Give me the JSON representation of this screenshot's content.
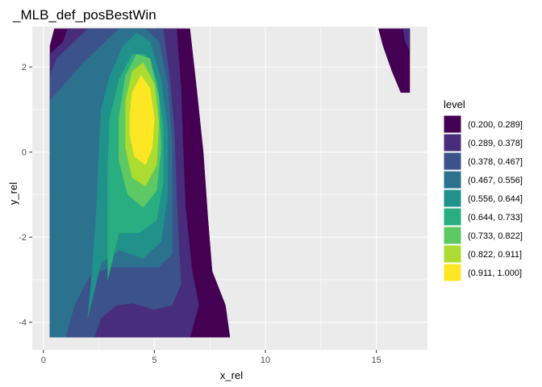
{
  "chart_data": {
    "type": "contour",
    "title": "_MLB_def_posBestWin",
    "xlabel": "x_rel",
    "ylabel": "y_rel",
    "xlim": [
      -0.5,
      17.3
    ],
    "ylim": [
      -4.65,
      2.95
    ],
    "x_ticks": [
      0,
      5,
      10,
      15
    ],
    "y_ticks": [
      -4,
      -2,
      0,
      2
    ],
    "grid": true,
    "panel_background": "#ebebeb",
    "legend": {
      "title": "level",
      "placement": "right",
      "entries": [
        {
          "label": "(0.200, 0.289]",
          "color": "#440154"
        },
        {
          "label": "(0.289, 0.378]",
          "color": "#472d7b"
        },
        {
          "label": "(0.378, 0.467]",
          "color": "#3b528b"
        },
        {
          "label": "(0.467, 0.556]",
          "color": "#2c728e"
        },
        {
          "label": "(0.556, 0.644]",
          "color": "#21918c"
        },
        {
          "label": "(0.644, 0.733]",
          "color": "#28ae80"
        },
        {
          "label": "(0.733, 0.822]",
          "color": "#5ec962"
        },
        {
          "label": "(0.822, 0.911]",
          "color": "#addc30"
        },
        {
          "label": "(0.911, 1.000]",
          "color": "#fde725"
        }
      ]
    },
    "regions": [
      {
        "level": 0,
        "points": [
          [
            0.3,
            -4.35
          ],
          [
            8.4,
            -4.35
          ],
          [
            8.2,
            -3.6
          ],
          [
            7.6,
            -2.8
          ],
          [
            7.4,
            -1.5
          ],
          [
            7.2,
            0
          ],
          [
            6.9,
            1.5
          ],
          [
            6.6,
            2.9
          ],
          [
            0.5,
            2.9
          ],
          [
            0.3,
            2.5
          ]
        ]
      },
      {
        "level": 1,
        "points": [
          [
            0.3,
            -4.35
          ],
          [
            4.9,
            -4.35
          ],
          [
            4.3,
            -4.1
          ],
          [
            3.7,
            -4.35
          ],
          [
            6.6,
            -4.35
          ],
          [
            7.0,
            -3.6
          ],
          [
            6.7,
            -2.8
          ],
          [
            6.4,
            -1.3
          ],
          [
            6.3,
            0
          ],
          [
            6.2,
            1.5
          ],
          [
            6.0,
            2.9
          ],
          [
            1.1,
            2.9
          ],
          [
            0.9,
            2.6
          ],
          [
            0.3,
            2.3
          ]
        ]
      },
      {
        "level": 2,
        "points": [
          [
            0.3,
            -4.35
          ],
          [
            2.3,
            -4.35
          ],
          [
            2.6,
            -3.9
          ],
          [
            3.3,
            -3.6
          ],
          [
            4.0,
            -3.55
          ],
          [
            5.0,
            -3.7
          ],
          [
            5.8,
            -3.6
          ],
          [
            6.2,
            -3.1
          ],
          [
            6.1,
            -2.2
          ],
          [
            6.0,
            -1.0
          ],
          [
            5.9,
            0.5
          ],
          [
            5.7,
            1.7
          ],
          [
            5.4,
            2.9
          ],
          [
            2.0,
            2.9
          ],
          [
            1.4,
            2.6
          ],
          [
            0.6,
            2.2
          ],
          [
            0.3,
            1.8
          ]
        ]
      },
      {
        "level": 3,
        "points": [
          [
            0.3,
            -4.35
          ],
          [
            1.0,
            -4.35
          ],
          [
            1.4,
            -3.6
          ],
          [
            2.1,
            -2.9
          ],
          [
            3.0,
            -2.7
          ],
          [
            4.2,
            -2.7
          ],
          [
            5.2,
            -2.7
          ],
          [
            5.8,
            -2.4
          ],
          [
            5.8,
            -1.2
          ],
          [
            5.8,
            0.2
          ],
          [
            5.6,
            1.6
          ],
          [
            5.2,
            2.6
          ],
          [
            4.6,
            2.9
          ],
          [
            3.4,
            2.9
          ],
          [
            2.8,
            2.6
          ],
          [
            1.8,
            2.1
          ],
          [
            0.8,
            1.5
          ],
          [
            0.3,
            1.2
          ]
        ]
      },
      {
        "level": 4,
        "points": [
          [
            2.0,
            -3.9
          ],
          [
            2.6,
            -2.6
          ],
          [
            3.4,
            -2.3
          ],
          [
            4.5,
            -2.5
          ],
          [
            5.3,
            -2.1
          ],
          [
            5.6,
            -1.0
          ],
          [
            5.6,
            0.5
          ],
          [
            5.3,
            1.7
          ],
          [
            4.8,
            2.6
          ],
          [
            4.2,
            2.8
          ],
          [
            3.6,
            2.5
          ],
          [
            3.0,
            1.8
          ],
          [
            2.6,
            1.0
          ],
          [
            2.5,
            0
          ],
          [
            2.4,
            -1.3
          ],
          [
            2.2,
            -2.8
          ]
        ]
      },
      {
        "level": 5,
        "points": [
          [
            2.9,
            -3.0
          ],
          [
            3.4,
            -1.9
          ],
          [
            4.3,
            -1.9
          ],
          [
            5.1,
            -1.6
          ],
          [
            5.4,
            -0.7
          ],
          [
            5.4,
            0.6
          ],
          [
            5.1,
            1.7
          ],
          [
            4.6,
            2.3
          ],
          [
            4.0,
            2.3
          ],
          [
            3.4,
            1.7
          ],
          [
            3.0,
            0.8
          ],
          [
            2.9,
            -0.4
          ],
          [
            2.9,
            -1.8
          ]
        ]
      },
      {
        "level": 6,
        "points": [
          [
            3.4,
            -0.2
          ],
          [
            3.8,
            -1.0
          ],
          [
            4.5,
            -1.3
          ],
          [
            5.1,
            -0.9
          ],
          [
            5.3,
            0.1
          ],
          [
            5.2,
            1.3
          ],
          [
            4.8,
            2.2
          ],
          [
            4.2,
            2.3
          ],
          [
            3.7,
            1.8
          ],
          [
            3.4,
            0.8
          ]
        ]
      },
      {
        "level": 7,
        "points": [
          [
            3.7,
            0.1
          ],
          [
            4.0,
            -0.6
          ],
          [
            4.6,
            -0.8
          ],
          [
            5.1,
            -0.3
          ],
          [
            5.2,
            0.7
          ],
          [
            5.0,
            1.6
          ],
          [
            4.5,
            2.1
          ],
          [
            4.0,
            1.9
          ],
          [
            3.7,
            1.2
          ]
        ]
      },
      {
        "level": 8,
        "points": [
          [
            3.9,
            0.4
          ],
          [
            4.1,
            -0.1
          ],
          [
            4.6,
            -0.3
          ],
          [
            4.9,
            0.1
          ],
          [
            5.0,
            0.8
          ],
          [
            4.8,
            1.5
          ],
          [
            4.4,
            1.8
          ],
          [
            4.0,
            1.4
          ],
          [
            3.9,
            0.9
          ]
        ]
      },
      {
        "level": 0,
        "points": [
          [
            15.1,
            2.9
          ],
          [
            16.5,
            2.9
          ],
          [
            16.5,
            1.4
          ],
          [
            16.1,
            1.4
          ],
          [
            15.7,
            1.9
          ],
          [
            15.3,
            2.5
          ]
        ]
      },
      {
        "level": 1,
        "points": [
          [
            16.2,
            2.9
          ],
          [
            16.5,
            2.9
          ],
          [
            16.5,
            2.4
          ],
          [
            16.3,
            2.6
          ]
        ]
      }
    ]
  }
}
